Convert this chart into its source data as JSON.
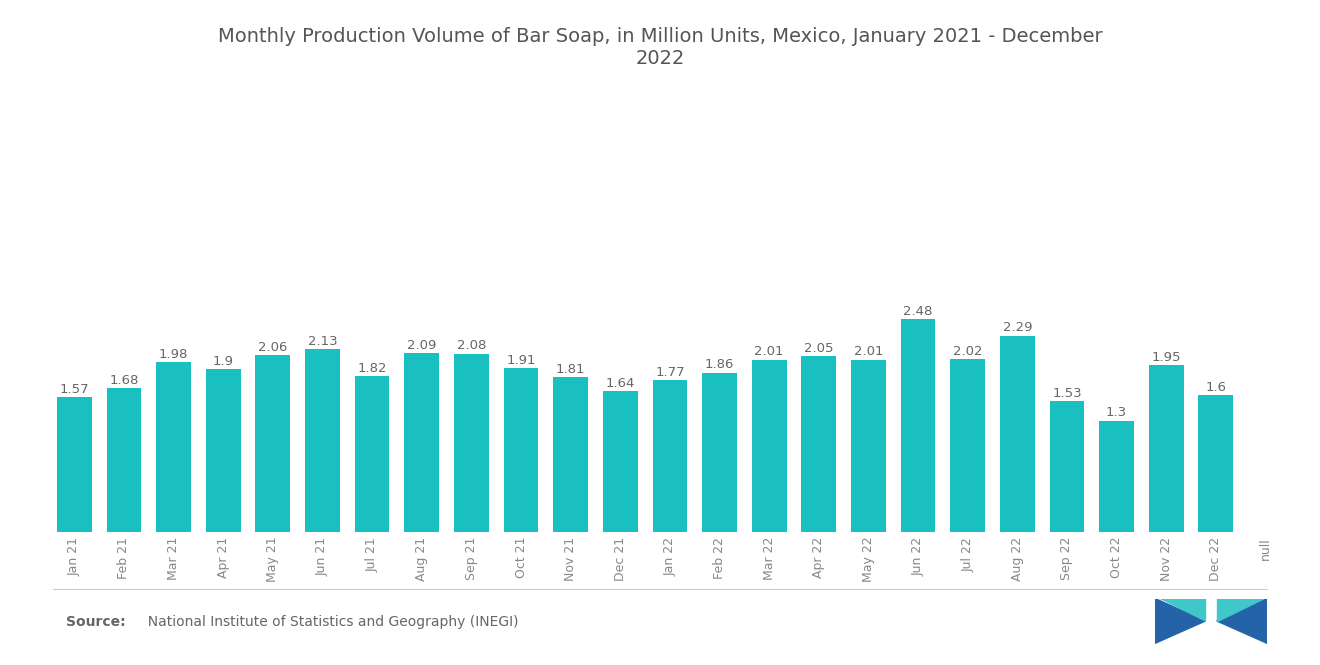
{
  "title": "Monthly Production Volume of Bar Soap, in Million Units, Mexico, January 2021 - December\n2022",
  "categories": [
    "Jan 21",
    "Feb 21",
    "Mar 21",
    "Apr 21",
    "May 21",
    "Jun 21",
    "Jul 21",
    "Aug 21",
    "Sep 21",
    "Oct 21",
    "Nov 21",
    "Dec 21",
    "Jan 22",
    "Feb 22",
    "Mar 22",
    "Apr 22",
    "May 22",
    "Jun 22",
    "Jul 22",
    "Aug 22",
    "Sep 22",
    "Oct 22",
    "Nov 22",
    "Dec 22",
    "null"
  ],
  "values": [
    1.57,
    1.68,
    1.98,
    1.9,
    2.06,
    2.13,
    1.82,
    2.09,
    2.08,
    1.91,
    1.81,
    1.64,
    1.77,
    1.86,
    2.01,
    2.05,
    2.01,
    2.48,
    2.02,
    2.29,
    1.53,
    1.3,
    1.95,
    1.6,
    0
  ],
  "bar_color": "#1ABFBF",
  "background_color": "#ffffff",
  "title_color": "#555555",
  "label_color": "#666666",
  "tick_color": "#888888",
  "source_label_bold": "Source:",
  "source_text_normal": "  National Institute of Statistics and Geography (INEGI)",
  "title_fontsize": 14,
  "label_fontsize": 9.5,
  "tick_fontsize": 9.0,
  "logo_blue": "#2563a8",
  "logo_teal": "#40C8C8"
}
